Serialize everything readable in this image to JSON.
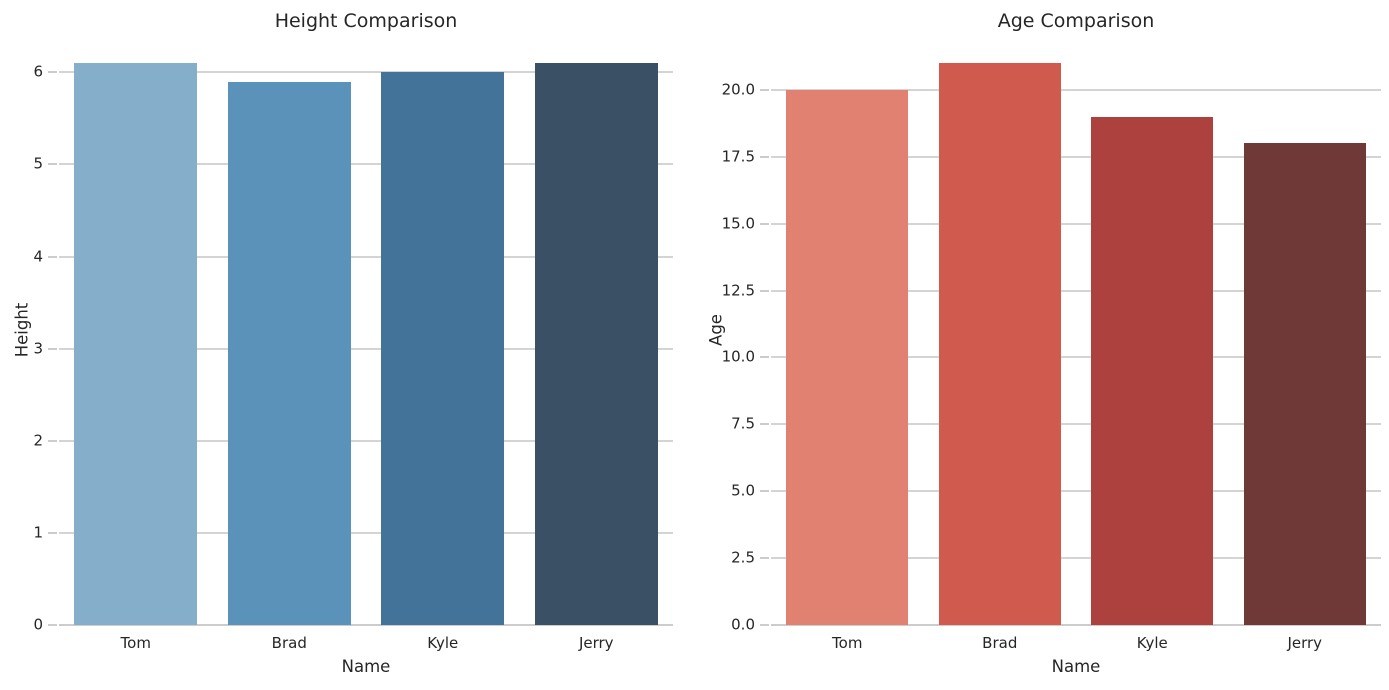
{
  "figure": {
    "background": "#ffffff",
    "text_color": "#262626",
    "grid_color": "#d4d4d4",
    "axis_line_color": "#cccccc"
  },
  "chart_data": [
    {
      "type": "bar",
      "title": "Height Comparison",
      "xlabel": "Name",
      "ylabel": "Height",
      "categories": [
        "Tom",
        "Brad",
        "Kyle",
        "Jerry"
      ],
      "values": [
        6.1,
        5.9,
        6.0,
        6.1
      ],
      "ylim": [
        0,
        6.405
      ],
      "yticks": [
        0,
        1,
        2,
        3,
        4,
        5,
        6
      ],
      "ytick_labels": [
        "0",
        "1",
        "2",
        "3",
        "4",
        "5",
        "6"
      ],
      "bar_colors": [
        "#85aecb",
        "#5b92ba",
        "#44739a",
        "#3a5165"
      ],
      "grid": "horizontal",
      "legend": null
    },
    {
      "type": "bar",
      "title": "Age Comparison",
      "xlabel": "Name",
      "ylabel": "Age",
      "categories": [
        "Tom",
        "Brad",
        "Kyle",
        "Jerry"
      ],
      "values": [
        20,
        21,
        19,
        18
      ],
      "ylim": [
        0,
        22.05
      ],
      "yticks": [
        0,
        2.5,
        5,
        7.5,
        10,
        12.5,
        15,
        17.5,
        20
      ],
      "ytick_labels": [
        "0.0",
        "2.5",
        "5.0",
        "7.5",
        "10.0",
        "12.5",
        "15.0",
        "17.5",
        "20.0"
      ],
      "bar_colors": [
        "#e08172",
        "#d05a4e",
        "#ad413e",
        "#6f3937"
      ],
      "grid": "horizontal",
      "legend": null
    }
  ]
}
